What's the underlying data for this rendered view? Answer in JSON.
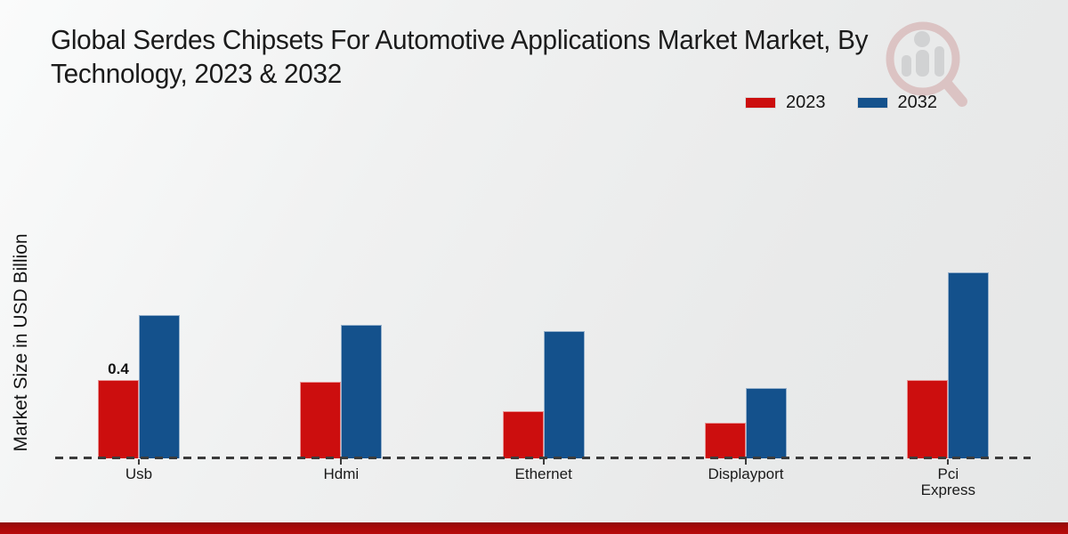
{
  "page": {
    "title": "Global Serdes Chipsets For Automotive Applications Market  Market, By\nTechnology, 2023 & 2032",
    "watermark_icon": "magnifier-bar-chart-logo"
  },
  "chart_data": {
    "type": "bar",
    "title": "Global Serdes Chipsets For Automotive Applications Market  Market, By Technology, 2023 & 2032",
    "xlabel": "",
    "ylabel": "Market Size in USD Billion",
    "categories": [
      "Usb",
      "Hdmi",
      "Ethernet",
      "Displayport",
      "Pci\nExpress"
    ],
    "series": [
      {
        "name": "2023",
        "color": "#cc0e0e",
        "values": [
          0.4,
          0.39,
          0.24,
          0.18,
          0.4
        ]
      },
      {
        "name": "2032",
        "color": "#14518c",
        "values": [
          0.73,
          0.68,
          0.65,
          0.36,
          0.95
        ]
      }
    ],
    "annotations": [
      {
        "category_index": 0,
        "series_index": 0,
        "text": "0.4"
      }
    ],
    "ylim": [
      0,
      1.0
    ],
    "legend_position": "top-right",
    "grid": false,
    "baseline_style": "dashed"
  },
  "colors": {
    "series_2023": "#cc0e0e",
    "series_2032": "#14518c",
    "baseline": "#3b3b3b",
    "footer_strip": "#b80b0b",
    "text": "#1a1a1a",
    "watermark_red": "#c98b8b",
    "watermark_grey": "#9b9ba0"
  }
}
